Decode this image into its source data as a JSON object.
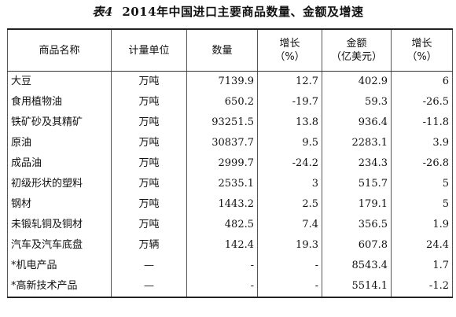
{
  "title": {
    "prefix": "表4",
    "text": "2014年中国进口主要商品数量、金额及增速"
  },
  "headers": {
    "name": "商品名称",
    "unit": "计量单位",
    "quantity": "数量",
    "qty_growth_line1": "增长",
    "qty_growth_line2": "（%）",
    "amount_line1": "金额",
    "amount_line2": "（亿美元）",
    "amt_growth_line1": "增长",
    "amt_growth_line2": "（%）"
  },
  "rows": [
    {
      "name": "大豆",
      "unit": "万吨",
      "quantity": "7139.9",
      "qty_growth": "12.7",
      "amount": "402.9",
      "amt_growth": "6"
    },
    {
      "name": "食用植物油",
      "unit": "万吨",
      "quantity": "650.2",
      "qty_growth": "-19.7",
      "amount": "59.3",
      "amt_growth": "-26.5"
    },
    {
      "name": "铁矿砂及其精矿",
      "unit": "万吨",
      "quantity": "93251.5",
      "qty_growth": "13.8",
      "amount": "936.4",
      "amt_growth": "-11.8"
    },
    {
      "name": "原油",
      "unit": "万吨",
      "quantity": "30837.7",
      "qty_growth": "9.5",
      "amount": "2283.1",
      "amt_growth": "3.9"
    },
    {
      "name": "成品油",
      "unit": "万吨",
      "quantity": "2999.7",
      "qty_growth": "-24.2",
      "amount": "234.3",
      "amt_growth": "-26.8"
    },
    {
      "name": "初级形状的塑料",
      "unit": "万吨",
      "quantity": "2535.1",
      "qty_growth": "3",
      "amount": "515.7",
      "amt_growth": "5"
    },
    {
      "name": "钢材",
      "unit": "万吨",
      "quantity": "1443.2",
      "qty_growth": "2.5",
      "amount": "179.1",
      "amt_growth": "5"
    },
    {
      "name": "未锻轧铜及铜材",
      "unit": "万吨",
      "quantity": "482.5",
      "qty_growth": "7.4",
      "amount": "356.5",
      "amt_growth": "1.9"
    },
    {
      "name": "汽车及汽车底盘",
      "unit": "万辆",
      "quantity": "142.4",
      "qty_growth": "19.3",
      "amount": "607.8",
      "amt_growth": "24.4"
    },
    {
      "name": "*机电产品",
      "unit": "—",
      "quantity": "-",
      "qty_growth": "-",
      "amount": "8543.4",
      "amt_growth": "1.7"
    },
    {
      "name": "*高新技术产品",
      "unit": "—",
      "quantity": "-",
      "qty_growth": "-",
      "amount": "5514.1",
      "amt_growth": "-1.2"
    }
  ]
}
